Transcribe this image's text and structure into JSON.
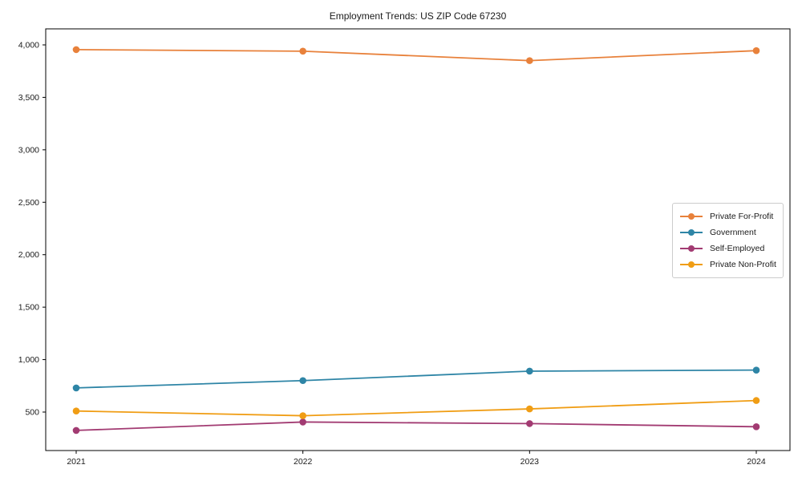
{
  "chart_data": {
    "type": "line",
    "title": "Employment Trends: US ZIP Code 67230",
    "xlabel": "",
    "ylabel": "",
    "x": [
      2021,
      2022,
      2023,
      2024
    ],
    "x_tick_labels": [
      "2021",
      "2022",
      "2023",
      "2024"
    ],
    "y_ticks": [
      500,
      1000,
      1500,
      2000,
      2500,
      3000,
      3500,
      4000
    ],
    "y_tick_labels": [
      "500",
      "1,000",
      "1,500",
      "2,000",
      "2,500",
      "3,000",
      "3,500",
      "4,000"
    ],
    "ylim": [
      130,
      4155
    ],
    "grid": false,
    "legend_position": "center right",
    "frame": true,
    "text_color": "#1a1a1a",
    "axis_color": "#000000",
    "series": [
      {
        "name": "Private For-Profit",
        "color": "#E8813B",
        "marker": "circle",
        "values": [
          3955,
          3940,
          3850,
          3945
        ]
      },
      {
        "name": "Government",
        "color": "#2E85A6",
        "marker": "circle",
        "values": [
          730,
          800,
          890,
          900
        ]
      },
      {
        "name": "Self-Employed",
        "color": "#A23B72",
        "marker": "circle",
        "values": [
          325,
          405,
          390,
          360
        ]
      },
      {
        "name": "Private Non-Profit",
        "color": "#F09D14",
        "marker": "circle",
        "values": [
          510,
          465,
          530,
          610
        ]
      }
    ]
  }
}
